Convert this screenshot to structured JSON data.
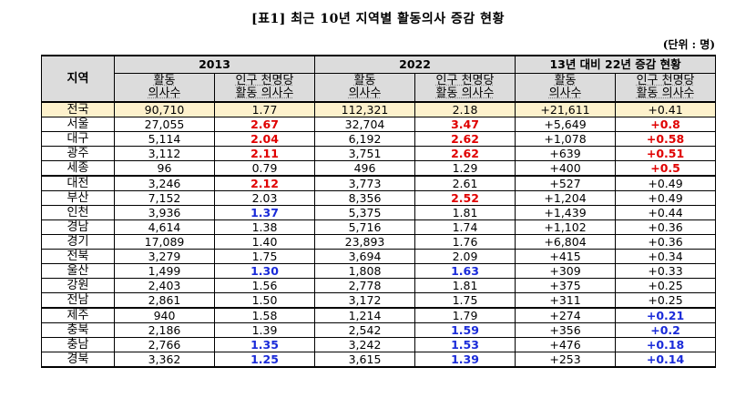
{
  "title": "[표1] 최근 10년 지역별 활동의사 증감 현황",
  "unit": "(단위 : 명)",
  "header": {
    "region": "지역",
    "year1": "2013",
    "year2": "2022",
    "change": "13년 대비 22년 증감 현황",
    "col_active_1": "활동",
    "col_active_2": "의사수",
    "col_per_1": "인구 천명당",
    "col_per_2": "활동 의사수"
  },
  "rows": [
    {
      "region": "전국",
      "a13": "90,710",
      "p13": "1.77",
      "a22": "112,321",
      "p22": "2.18",
      "da": "+21,611",
      "dp": "+0.41"
    },
    {
      "region": "서울",
      "a13": "27,055",
      "p13": "2.67",
      "a22": "32,704",
      "p22": "3.47",
      "da": "+5,649",
      "dp": "+0.8"
    },
    {
      "region": "대구",
      "a13": "5,114",
      "p13": "2.04",
      "a22": "6,192",
      "p22": "2.62",
      "da": "+1,078",
      "dp": "+0.58"
    },
    {
      "region": "광주",
      "a13": "3,112",
      "p13": "2.11",
      "a22": "3,751",
      "p22": "2.62",
      "da": "+639",
      "dp": "+0.51"
    },
    {
      "region": "세종",
      "a13": "96",
      "p13": "0.79",
      "a22": "496",
      "p22": "1.29",
      "da": "+400",
      "dp": "+0.5"
    },
    {
      "region": "대전",
      "a13": "3,246",
      "p13": "2.12",
      "a22": "3,773",
      "p22": "2.61",
      "da": "+527",
      "dp": "+0.49"
    },
    {
      "region": "부산",
      "a13": "7,152",
      "p13": "2.03",
      "a22": "8,356",
      "p22": "2.52",
      "da": "+1,204",
      "dp": "+0.49"
    },
    {
      "region": "인천",
      "a13": "3,936",
      "p13": "1.37",
      "a22": "5,375",
      "p22": "1.81",
      "da": "+1,439",
      "dp": "+0.44"
    },
    {
      "region": "경남",
      "a13": "4,614",
      "p13": "1.38",
      "a22": "5,716",
      "p22": "1.74",
      "da": "+1,102",
      "dp": "+0.36"
    },
    {
      "region": "경기",
      "a13": "17,089",
      "p13": "1.40",
      "a22": "23,893",
      "p22": "1.76",
      "da": "+6,804",
      "dp": "+0.36"
    },
    {
      "region": "전북",
      "a13": "3,279",
      "p13": "1.75",
      "a22": "3,694",
      "p22": "2.09",
      "da": "+415",
      "dp": "+0.34"
    },
    {
      "region": "울산",
      "a13": "1,499",
      "p13": "1.30",
      "a22": "1,808",
      "p22": "1.63",
      "da": "+309",
      "dp": "+0.33"
    },
    {
      "region": "강원",
      "a13": "2,403",
      "p13": "1.56",
      "a22": "2,778",
      "p22": "1.81",
      "da": "+375",
      "dp": "+0.25"
    },
    {
      "region": "전남",
      "a13": "2,861",
      "p13": "1.50",
      "a22": "3,172",
      "p22": "1.75",
      "da": "+311",
      "dp": "+0.25"
    },
    {
      "region": "제주",
      "a13": "940",
      "p13": "1.58",
      "a22": "1,214",
      "p22": "1.79",
      "da": "+274",
      "dp": "+0.21"
    },
    {
      "region": "충북",
      "a13": "2,186",
      "p13": "1.39",
      "a22": "2,542",
      "p22": "1.59",
      "da": "+356",
      "dp": "+0.2"
    },
    {
      "region": "충남",
      "a13": "2,766",
      "p13": "1.35",
      "a22": "3,242",
      "p22": "1.53",
      "da": "+476",
      "dp": "+0.18"
    },
    {
      "region": "경북",
      "a13": "3,362",
      "p13": "1.25",
      "a22": "3,615",
      "p22": "1.39",
      "da": "+253",
      "dp": "+0.14"
    }
  ],
  "colors": {
    "high": "#e00000",
    "low": "#1a2bd9",
    "national_row_bg": "#fdf1cc",
    "header_bg": "#dcdcdc"
  }
}
